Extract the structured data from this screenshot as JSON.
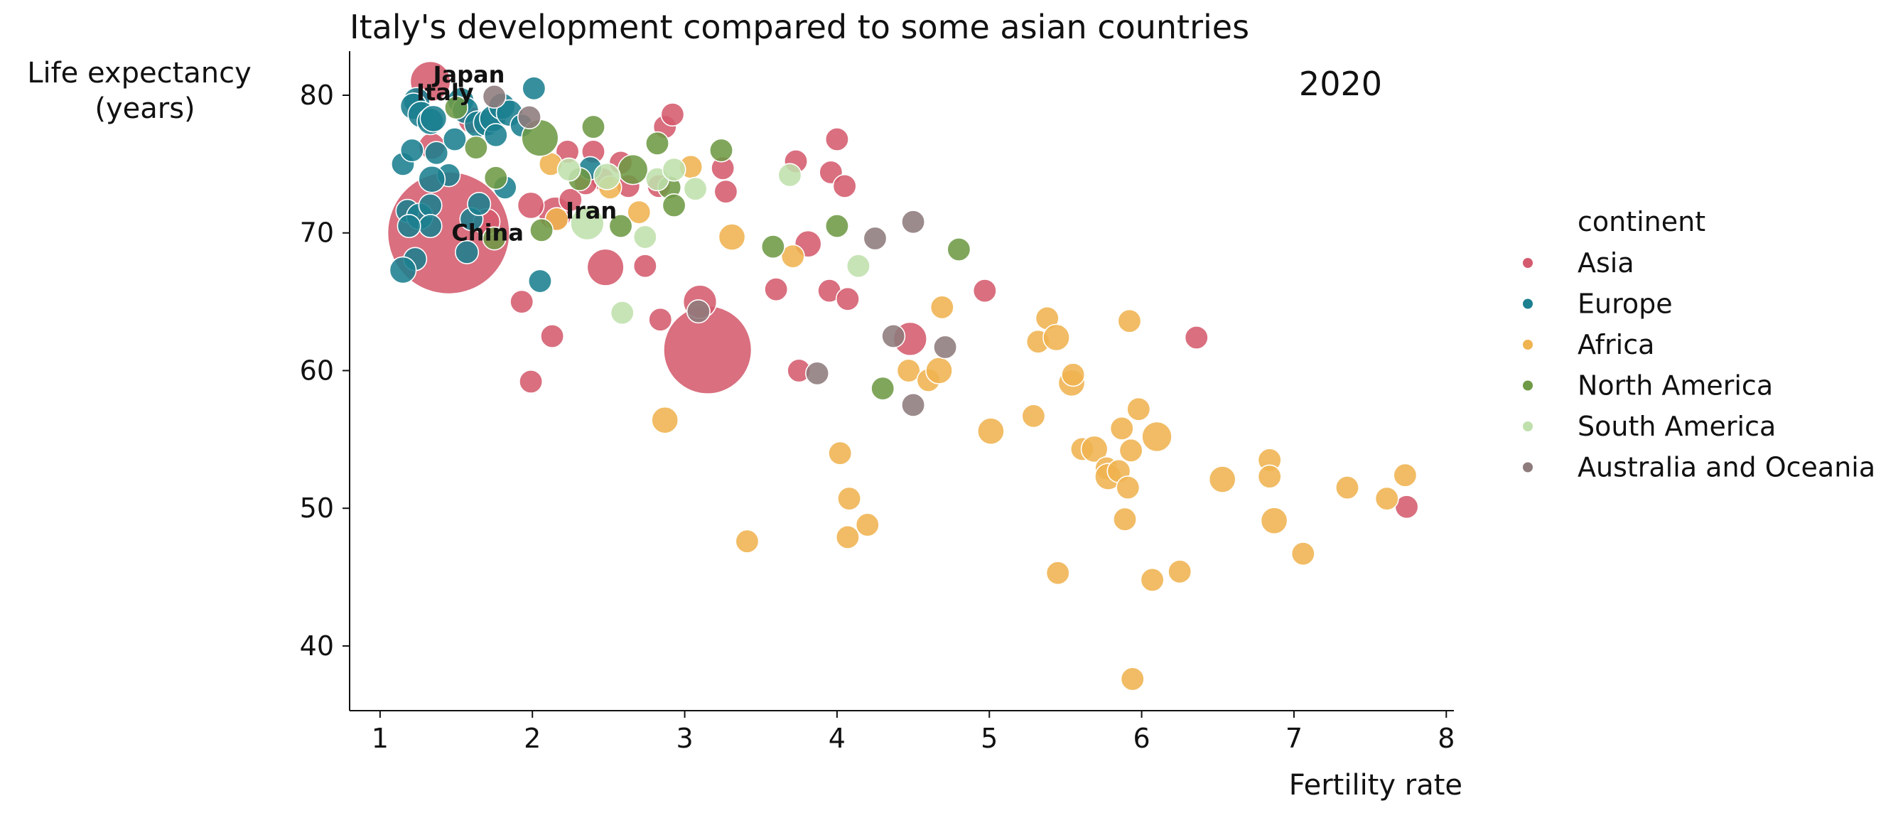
{
  "chart_data": {
    "type": "scatter",
    "title": "Italy's development compared to some asian countries",
    "year_label": "2020",
    "xlabel": "Fertility rate",
    "ylabel_lines": [
      "Life expectancy",
      "(years)"
    ],
    "xlim": [
      0.8,
      8.05
    ],
    "ylim": [
      35.3,
      83.2
    ],
    "x_ticks": [
      1,
      2,
      3,
      4,
      5,
      6,
      7,
      8
    ],
    "y_ticks": [
      40,
      50,
      60,
      70,
      80
    ],
    "legend": {
      "title": "continent",
      "placement": "right"
    },
    "colors": {
      "Asia": "#d45b6d",
      "Europe": "#1b8090",
      "Africa": "#efb350",
      "North America": "#6e9a46",
      "South America": "#bfe0ac",
      "Australia and Oceania": "#8e7b7c"
    },
    "annotations": [
      {
        "text": "Japan",
        "x": 1.33,
        "y": 81.5
      },
      {
        "text": "Italy",
        "x": 1.22,
        "y": 80.2
      },
      {
        "text": "Iran",
        "x": 2.2,
        "y": 71.6
      },
      {
        "text": "China",
        "x": 1.45,
        "y": 70.0
      }
    ],
    "series": [
      {
        "name": "Asia",
        "points": [
          [
            1.33,
            81.0,
            8
          ],
          [
            1.45,
            70.0,
            32
          ],
          [
            3.15,
            61.5,
            22
          ],
          [
            2.15,
            71.4,
            6
          ],
          [
            3.1,
            65.0,
            6
          ],
          [
            2.48,
            67.5,
            7
          ],
          [
            4.48,
            62.3,
            6
          ],
          [
            1.34,
            76.3,
            4
          ],
          [
            1.6,
            78.2,
            4
          ],
          [
            1.7,
            70.8,
            4
          ],
          [
            1.99,
            72.0,
            4
          ],
          [
            1.93,
            65.0,
            3
          ],
          [
            1.99,
            59.2,
            3
          ],
          [
            2.13,
            62.5,
            3
          ],
          [
            2.23,
            75.9,
            3
          ],
          [
            2.4,
            75.9,
            3
          ],
          [
            2.46,
            73.9,
            3
          ],
          [
            2.63,
            73.4,
            3
          ],
          [
            2.74,
            67.6,
            3
          ],
          [
            2.83,
            73.4,
            3
          ],
          [
            2.84,
            63.7,
            3
          ],
          [
            2.87,
            77.7,
            3
          ],
          [
            2.92,
            78.6,
            3
          ],
          [
            3.25,
            74.7,
            3
          ],
          [
            3.27,
            73.0,
            3
          ],
          [
            3.6,
            65.9,
            3
          ],
          [
            3.73,
            75.2,
            3
          ],
          [
            3.75,
            60.0,
            3
          ],
          [
            3.81,
            69.2,
            4
          ],
          [
            3.96,
            74.4,
            3
          ],
          [
            3.95,
            65.8,
            3
          ],
          [
            4.0,
            76.8,
            3
          ],
          [
            4.05,
            73.4,
            3
          ],
          [
            4.07,
            65.2,
            3
          ],
          [
            4.97,
            65.8,
            3
          ],
          [
            6.36,
            62.4,
            3
          ],
          [
            7.74,
            50.1,
            3
          ],
          [
            2.25,
            72.4,
            3
          ],
          [
            2.35,
            73.6,
            3
          ],
          [
            2.58,
            75.1,
            3
          ]
        ]
      },
      {
        "name": "Europe",
        "points": [
          [
            1.24,
            79.6,
            4
          ],
          [
            1.22,
            79.2,
            4
          ],
          [
            1.27,
            78.6,
            4
          ],
          [
            1.33,
            78.1,
            4
          ],
          [
            1.35,
            78.3,
            4
          ],
          [
            1.53,
            79.6,
            4
          ],
          [
            1.56,
            78.9,
            4
          ],
          [
            1.64,
            77.9,
            4
          ],
          [
            1.7,
            78.0,
            4
          ],
          [
            1.74,
            78.3,
            4
          ],
          [
            1.8,
            79.2,
            4
          ],
          [
            1.85,
            78.7,
            4
          ],
          [
            1.15,
            75.0,
            3
          ],
          [
            1.21,
            76.0,
            3
          ],
          [
            1.37,
            75.8,
            3
          ],
          [
            1.45,
            74.2,
            3
          ],
          [
            1.49,
            76.8,
            3
          ],
          [
            1.34,
            73.9,
            4
          ],
          [
            1.18,
            71.6,
            3
          ],
          [
            1.26,
            71.2,
            4
          ],
          [
            1.33,
            72.0,
            3
          ],
          [
            1.33,
            70.5,
            3
          ],
          [
            1.19,
            70.5,
            3
          ],
          [
            1.23,
            68.1,
            3
          ],
          [
            1.15,
            67.3,
            4
          ],
          [
            1.57,
            68.6,
            3
          ],
          [
            1.6,
            71.0,
            3
          ],
          [
            1.65,
            72.1,
            3
          ],
          [
            1.82,
            73.3,
            3
          ],
          [
            1.76,
            77.1,
            3
          ],
          [
            1.93,
            77.8,
            3
          ],
          [
            2.01,
            80.5,
            3
          ],
          [
            2.05,
            66.5,
            3
          ],
          [
            2.38,
            74.7,
            3
          ]
        ]
      },
      {
        "name": "Africa",
        "points": [
          [
            3.31,
            69.7,
            4
          ],
          [
            3.04,
            74.8,
            3
          ],
          [
            2.12,
            75.0,
            3
          ],
          [
            2.16,
            71.0,
            3
          ],
          [
            2.51,
            73.3,
            3
          ],
          [
            2.7,
            71.5,
            3
          ],
          [
            3.71,
            68.3,
            3
          ],
          [
            4.02,
            54.0,
            3
          ],
          [
            4.07,
            47.9,
            3
          ],
          [
            4.08,
            50.7,
            3
          ],
          [
            4.2,
            48.8,
            3
          ],
          [
            4.47,
            60.0,
            3
          ],
          [
            4.6,
            59.3,
            3
          ],
          [
            4.67,
            60.0,
            4
          ],
          [
            4.69,
            64.6,
            3
          ],
          [
            2.87,
            56.4,
            4
          ],
          [
            3.41,
            47.6,
            3
          ],
          [
            5.01,
            55.6,
            4
          ],
          [
            5.29,
            56.7,
            3
          ],
          [
            5.32,
            62.1,
            3
          ],
          [
            5.38,
            63.8,
            3
          ],
          [
            5.44,
            62.4,
            4
          ],
          [
            5.45,
            45.3,
            3
          ],
          [
            5.54,
            59.1,
            4
          ],
          [
            5.55,
            59.7,
            3
          ],
          [
            5.61,
            54.3,
            3
          ],
          [
            5.69,
            54.3,
            4
          ],
          [
            5.77,
            52.9,
            3
          ],
          [
            5.78,
            52.3,
            4
          ],
          [
            5.85,
            52.7,
            3
          ],
          [
            5.87,
            55.8,
            3
          ],
          [
            5.89,
            49.2,
            3
          ],
          [
            5.91,
            51.5,
            3
          ],
          [
            5.92,
            63.6,
            3
          ],
          [
            5.93,
            54.2,
            3
          ],
          [
            5.94,
            37.6,
            3
          ],
          [
            5.98,
            57.2,
            3
          ],
          [
            6.07,
            44.8,
            3
          ],
          [
            6.1,
            55.2,
            5
          ],
          [
            6.25,
            45.4,
            3
          ],
          [
            6.53,
            52.1,
            4
          ],
          [
            6.84,
            53.5,
            3
          ],
          [
            6.84,
            52.3,
            3
          ],
          [
            6.87,
            49.1,
            4
          ],
          [
            7.06,
            46.7,
            3
          ],
          [
            7.35,
            51.5,
            3
          ],
          [
            7.61,
            50.7,
            3
          ],
          [
            7.73,
            52.4,
            3
          ]
        ]
      },
      {
        "name": "North America",
        "points": [
          [
            2.05,
            76.9,
            7
          ],
          [
            2.66,
            74.6,
            5
          ],
          [
            1.5,
            79.1,
            3
          ],
          [
            1.63,
            76.2,
            3
          ],
          [
            1.76,
            74.0,
            3
          ],
          [
            1.75,
            69.6,
            3
          ],
          [
            2.06,
            70.2,
            3
          ],
          [
            2.31,
            73.9,
            3
          ],
          [
            2.4,
            77.7,
            3
          ],
          [
            2.58,
            70.5,
            3
          ],
          [
            2.82,
            76.5,
            3
          ],
          [
            2.9,
            73.3,
            3
          ],
          [
            2.93,
            72.0,
            3
          ],
          [
            3.24,
            76.0,
            3
          ],
          [
            3.58,
            69.0,
            3
          ],
          [
            4.0,
            70.5,
            3
          ],
          [
            4.3,
            58.7,
            3
          ],
          [
            4.8,
            68.8,
            3
          ]
        ]
      },
      {
        "name": "South America",
        "points": [
          [
            2.36,
            70.7,
            6
          ],
          [
            2.49,
            74.1,
            4
          ],
          [
            2.24,
            74.6,
            3
          ],
          [
            2.59,
            64.2,
            3
          ],
          [
            2.74,
            69.7,
            3
          ],
          [
            2.82,
            73.9,
            3
          ],
          [
            2.93,
            74.6,
            3
          ],
          [
            3.07,
            73.2,
            3
          ],
          [
            3.69,
            74.2,
            3
          ],
          [
            4.14,
            67.6,
            3
          ]
        ]
      },
      {
        "name": "Australia and Oceania",
        "points": [
          [
            1.75,
            79.9,
            3
          ],
          [
            1.98,
            78.4,
            3
          ],
          [
            3.09,
            64.3,
            3
          ],
          [
            3.87,
            59.8,
            3
          ],
          [
            4.25,
            69.6,
            3
          ],
          [
            4.37,
            62.5,
            3
          ],
          [
            4.5,
            57.5,
            3
          ],
          [
            4.5,
            70.8,
            3
          ],
          [
            4.71,
            61.7,
            3
          ]
        ]
      }
    ]
  }
}
